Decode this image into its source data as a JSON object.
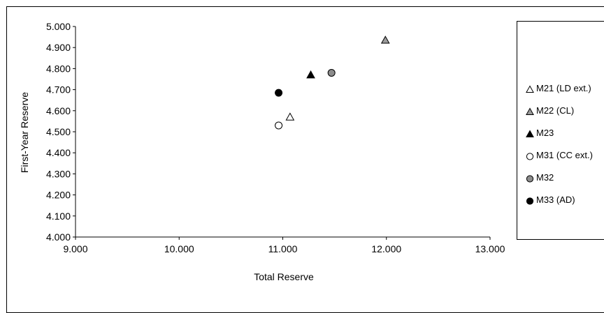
{
  "chart_data": {
    "type": "scatter",
    "xlabel": "Total Reserve",
    "ylabel": "First-Year Reserve",
    "xlim": [
      9000,
      13000
    ],
    "ylim": [
      4000,
      5000
    ],
    "x_ticks": [
      {
        "value": 9000,
        "label": "9.000"
      },
      {
        "value": 10000,
        "label": "10.000"
      },
      {
        "value": 11000,
        "label": "11.000"
      },
      {
        "value": 12000,
        "label": "12.000"
      },
      {
        "value": 13000,
        "label": "13.000"
      }
    ],
    "y_ticks": [
      {
        "value": 4000,
        "label": "4.000"
      },
      {
        "value": 4100,
        "label": "4.100"
      },
      {
        "value": 4200,
        "label": "4.200"
      },
      {
        "value": 4300,
        "label": "4.300"
      },
      {
        "value": 4400,
        "label": "4.400"
      },
      {
        "value": 4500,
        "label": "4.500"
      },
      {
        "value": 4600,
        "label": "4.600"
      },
      {
        "value": 4700,
        "label": "4.700"
      },
      {
        "value": 4800,
        "label": "4.800"
      },
      {
        "value": 4900,
        "label": "4.900"
      },
      {
        "value": 5000,
        "label": "5.000"
      }
    ],
    "grid": false,
    "legend_position": "right",
    "series": [
      {
        "name": "M21 (LD ext.)",
        "marker": "triangle",
        "fill": "#ffffff",
        "x": 11070,
        "y": 4570
      },
      {
        "name": "M22 (CL)",
        "marker": "triangle",
        "fill": "#9a9a9a",
        "x": 11990,
        "y": 4935
      },
      {
        "name": "M23",
        "marker": "triangle",
        "fill": "#000000",
        "x": 11270,
        "y": 4770
      },
      {
        "name": "M31 (CC ext.)",
        "marker": "circle",
        "fill": "#ffffff",
        "x": 10960,
        "y": 4530
      },
      {
        "name": "M32",
        "marker": "circle",
        "fill": "#8c8c8c",
        "x": 11470,
        "y": 4780
      },
      {
        "name": "M33 (AD)",
        "marker": "circle",
        "fill": "#000000",
        "x": 10960,
        "y": 4685
      }
    ]
  }
}
